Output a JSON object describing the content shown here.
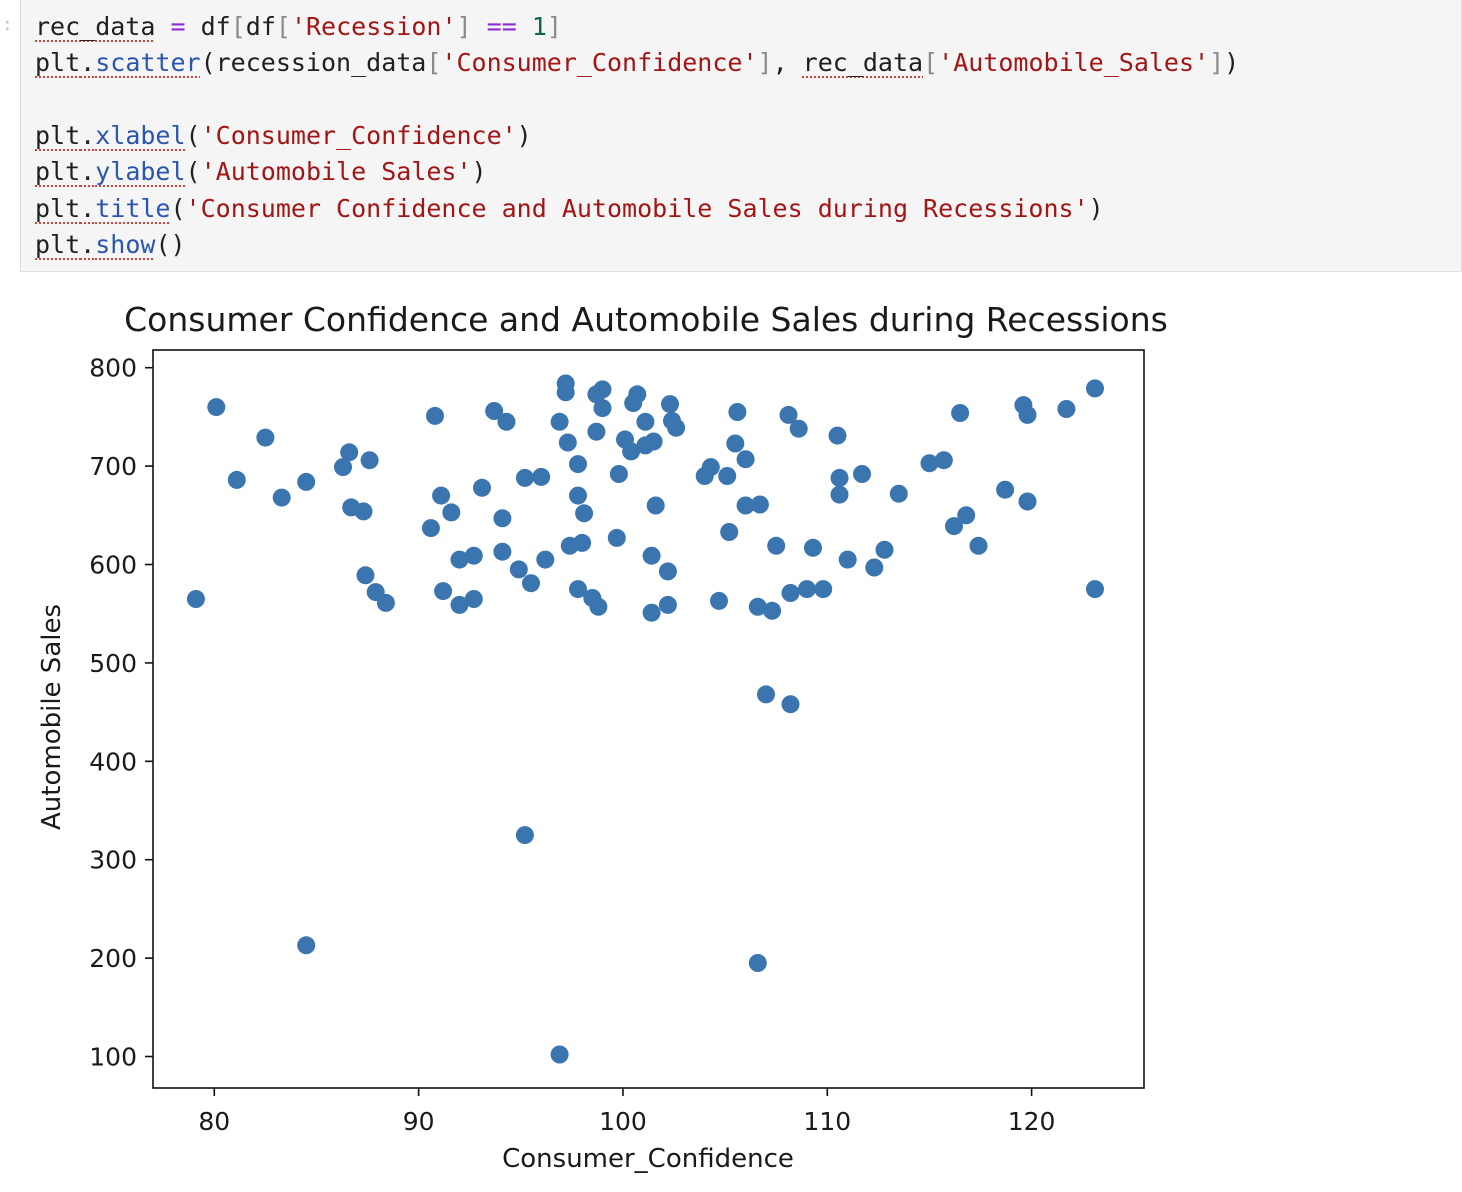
{
  "cell": {
    "prompt_mark": ":",
    "lines": [
      [
        {
          "t": "rec_data",
          "c": "sq"
        },
        {
          "t": " "
        },
        {
          "t": "=",
          "c": "tok-o"
        },
        {
          "t": " df"
        },
        {
          "t": "[",
          "c": "tok-b"
        },
        {
          "t": "df"
        },
        {
          "t": "[",
          "c": "tok-b"
        },
        {
          "t": "'Recession'",
          "c": "tok-s"
        },
        {
          "t": "]",
          "c": "tok-b"
        },
        {
          "t": " "
        },
        {
          "t": "==",
          "c": "tok-o"
        },
        {
          "t": " "
        },
        {
          "t": "1",
          "c": "tok-n"
        },
        {
          "t": "]",
          "c": "tok-b"
        }
      ],
      [
        {
          "t": "plt",
          "c": "sq"
        },
        {
          "t": ".",
          "c": "sq"
        },
        {
          "t": "scatter",
          "c": "tok-f sq"
        },
        {
          "t": "(recession_data"
        },
        {
          "t": "[",
          "c": "tok-b"
        },
        {
          "t": "'Consumer_Confidence'",
          "c": "tok-s"
        },
        {
          "t": "]",
          "c": "tok-b"
        },
        {
          "t": ", "
        },
        {
          "t": "rec_data",
          "c": "sq"
        },
        {
          "t": "[",
          "c": "tok-b"
        },
        {
          "t": "'Automobile_Sales'",
          "c": "tok-s"
        },
        {
          "t": "]",
          "c": "tok-b"
        },
        {
          "t": ")"
        }
      ],
      [],
      [
        {
          "t": "plt",
          "c": "sq"
        },
        {
          "t": ".",
          "c": "sq"
        },
        {
          "t": "xlabel",
          "c": "tok-f sq"
        },
        {
          "t": "("
        },
        {
          "t": "'Consumer_Confidence'",
          "c": "tok-s"
        },
        {
          "t": ")"
        }
      ],
      [
        {
          "t": "plt",
          "c": "sq"
        },
        {
          "t": ".",
          "c": "sq"
        },
        {
          "t": "ylabel",
          "c": "tok-f sq"
        },
        {
          "t": "("
        },
        {
          "t": "'Automobile Sales'",
          "c": "tok-s"
        },
        {
          "t": ")"
        }
      ],
      [
        {
          "t": "plt",
          "c": "sq"
        },
        {
          "t": ".",
          "c": "sq"
        },
        {
          "t": "title",
          "c": "tok-f sq"
        },
        {
          "t": "("
        },
        {
          "t": "'Consumer Confidence and Automobile Sales during Recessions'",
          "c": "tok-s"
        },
        {
          "t": ")"
        }
      ],
      [
        {
          "t": "plt",
          "c": "sq"
        },
        {
          "t": ".",
          "c": "sq"
        },
        {
          "t": "show",
          "c": "tok-f sq"
        },
        {
          "t": "()"
        }
      ]
    ]
  },
  "chart_data": {
    "type": "scatter",
    "title": "Consumer Confidence and Automobile Sales during Recessions",
    "xlabel": "Consumer_Confidence",
    "ylabel": "Automobile Sales",
    "xlim": [
      77,
      125.5
    ],
    "ylim": [
      68,
      818
    ],
    "xticks": [
      80,
      90,
      100,
      110,
      120
    ],
    "yticks": [
      100,
      200,
      300,
      400,
      500,
      600,
      700,
      800
    ],
    "grid": false,
    "marker_color": "#3b75af",
    "points": [
      [
        79.1,
        565
      ],
      [
        80.1,
        760
      ],
      [
        81.1,
        686
      ],
      [
        82.5,
        729
      ],
      [
        83.3,
        668
      ],
      [
        84.5,
        684
      ],
      [
        84.5,
        213
      ],
      [
        86.3,
        699
      ],
      [
        86.6,
        714
      ],
      [
        86.7,
        658
      ],
      [
        87.3,
        654
      ],
      [
        87.4,
        589
      ],
      [
        87.6,
        706
      ],
      [
        87.9,
        572
      ],
      [
        88.4,
        561
      ],
      [
        90.6,
        637
      ],
      [
        90.8,
        751
      ],
      [
        91.1,
        670
      ],
      [
        91.2,
        573
      ],
      [
        91.6,
        653
      ],
      [
        92.0,
        605
      ],
      [
        92.0,
        559
      ],
      [
        92.7,
        609
      ],
      [
        92.7,
        565
      ],
      [
        93.1,
        678
      ],
      [
        93.7,
        756
      ],
      [
        94.1,
        647
      ],
      [
        94.1,
        613
      ],
      [
        94.3,
        745
      ],
      [
        94.9,
        595
      ],
      [
        95.2,
        688
      ],
      [
        95.2,
        325
      ],
      [
        95.5,
        581
      ],
      [
        96.0,
        689
      ],
      [
        96.2,
        605
      ],
      [
        96.9,
        745
      ],
      [
        96.9,
        102
      ],
      [
        97.2,
        784
      ],
      [
        97.2,
        775
      ],
      [
        97.3,
        724
      ],
      [
        97.4,
        619
      ],
      [
        97.8,
        702
      ],
      [
        97.8,
        670
      ],
      [
        97.8,
        575
      ],
      [
        98.0,
        622
      ],
      [
        98.1,
        652
      ],
      [
        98.5,
        566
      ],
      [
        98.7,
        773
      ],
      [
        98.7,
        735
      ],
      [
        98.8,
        557
      ],
      [
        99.0,
        778
      ],
      [
        99.0,
        759
      ],
      [
        99.7,
        627
      ],
      [
        99.8,
        692
      ],
      [
        100.1,
        727
      ],
      [
        100.4,
        715
      ],
      [
        100.5,
        764
      ],
      [
        100.7,
        773
      ],
      [
        101.1,
        745
      ],
      [
        101.1,
        721
      ],
      [
        101.4,
        551
      ],
      [
        101.4,
        609
      ],
      [
        101.5,
        725
      ],
      [
        101.6,
        660
      ],
      [
        102.2,
        593
      ],
      [
        102.2,
        559
      ],
      [
        102.3,
        763
      ],
      [
        102.4,
        746
      ],
      [
        102.6,
        739
      ],
      [
        104.0,
        690
      ],
      [
        104.3,
        699
      ],
      [
        104.7,
        563
      ],
      [
        105.1,
        690
      ],
      [
        105.2,
        633
      ],
      [
        105.5,
        723
      ],
      [
        105.6,
        755
      ],
      [
        106.0,
        707
      ],
      [
        106.0,
        660
      ],
      [
        106.6,
        557
      ],
      [
        106.7,
        661
      ],
      [
        106.6,
        195
      ],
      [
        107.0,
        468
      ],
      [
        107.3,
        553
      ],
      [
        107.5,
        619
      ],
      [
        108.1,
        752
      ],
      [
        108.2,
        571
      ],
      [
        108.2,
        458
      ],
      [
        108.6,
        738
      ],
      [
        109.0,
        575
      ],
      [
        109.3,
        617
      ],
      [
        109.8,
        575
      ],
      [
        110.5,
        731
      ],
      [
        110.6,
        688
      ],
      [
        110.6,
        671
      ],
      [
        111.0,
        605
      ],
      [
        111.7,
        692
      ],
      [
        112.3,
        597
      ],
      [
        112.8,
        615
      ],
      [
        113.5,
        672
      ],
      [
        115.0,
        703
      ],
      [
        115.7,
        706
      ],
      [
        116.2,
        639
      ],
      [
        116.5,
        754
      ],
      [
        116.8,
        650
      ],
      [
        117.4,
        619
      ],
      [
        118.7,
        676
      ],
      [
        119.6,
        762
      ],
      [
        119.8,
        752
      ],
      [
        119.8,
        664
      ],
      [
        121.7,
        758
      ],
      [
        123.1,
        779
      ],
      [
        123.1,
        575
      ]
    ]
  }
}
